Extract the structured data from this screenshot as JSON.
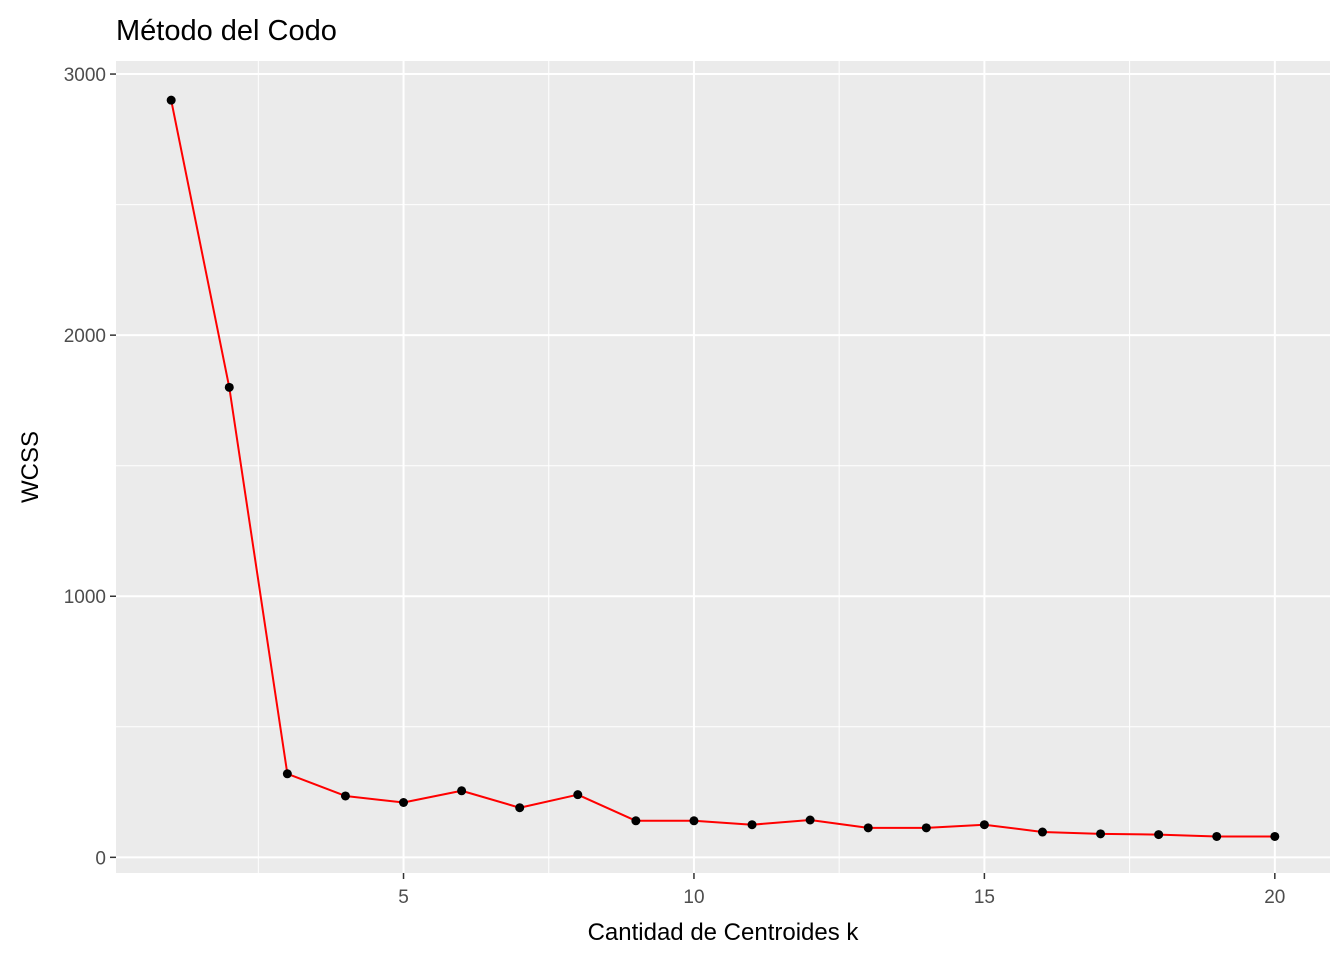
{
  "chart_data": {
    "type": "line",
    "title": "Método del Codo",
    "xlabel": "Cantidad de Centroides k",
    "ylabel": "WCSS",
    "xlim": [
      0.05,
      20.95
    ],
    "ylim": [
      -60,
      3050
    ],
    "x_ticks": [
      5,
      10,
      15,
      20
    ],
    "y_ticks": [
      0,
      1000,
      2000,
      3000
    ],
    "grid": true,
    "legend": "none",
    "series": [
      {
        "x": [
          1,
          2,
          3,
          4,
          5,
          6,
          7,
          8,
          9,
          10,
          11,
          12,
          13,
          14,
          15,
          16,
          17,
          18,
          19,
          20
        ],
        "y": [
          2900,
          1800,
          320,
          235,
          210,
          255,
          190,
          240,
          140,
          140,
          125,
          143,
          113,
          113,
          125,
          97,
          90,
          87,
          80,
          80
        ]
      }
    ],
    "colors": {
      "panel_background": "#ebebeb",
      "grid_major": "#ffffff",
      "line": "#ff0000",
      "point": "#000000"
    }
  }
}
